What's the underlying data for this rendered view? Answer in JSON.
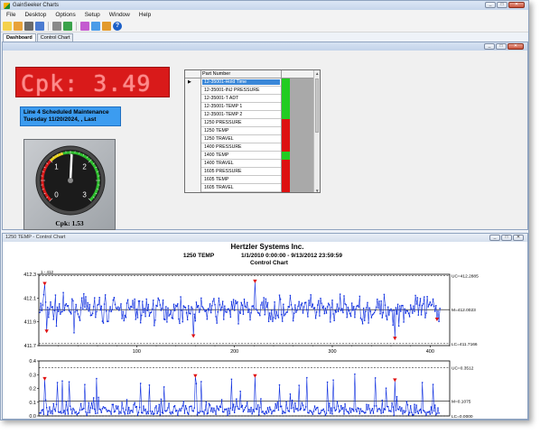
{
  "window": {
    "title": "GainSeeker Charts",
    "controls": [
      "_",
      "□",
      "✕"
    ]
  },
  "menu": [
    "File",
    "Desktop",
    "Options",
    "Setup",
    "Window",
    "Help"
  ],
  "toolbar": {
    "icons": [
      {
        "name": "new-chart-icon",
        "color": "#f4d14c"
      },
      {
        "name": "open-icon",
        "color": "#e8a23a"
      },
      {
        "name": "disk-icon",
        "color": "#6b6b6b"
      },
      {
        "name": "dashboard-icon",
        "color": "#4b7bd1"
      },
      {
        "name": "print-icon",
        "color": "#8a8a8a"
      },
      {
        "name": "export-icon",
        "color": "#3aa24a"
      },
      {
        "name": "palette-icon",
        "color": "#c45bd0"
      },
      {
        "name": "grid-icon",
        "color": "#4a9ce8"
      },
      {
        "name": "settings-icon",
        "color": "#e39a2b"
      }
    ],
    "help_label": "?"
  },
  "tabs": [
    "Dashboard",
    "Control Chart"
  ],
  "dashboard": {
    "cpk_banner": "Cpk: 3.49",
    "maintenance": {
      "line1": "Line 4 Scheduled Maintenance",
      "line2": "Tuesday 11/20/2024, , Last"
    },
    "gauge": {
      "value": 1.53,
      "label": "Cpk: 1.53",
      "ticks": [
        "0",
        "1",
        "2",
        "3"
      ],
      "max": 3
    },
    "grid": {
      "header": "Part Number",
      "rows": [
        {
          "part": "12-35001-Hold Time",
          "status": "green",
          "selected": true
        },
        {
          "part": "12-35001-INJ PRESSURE",
          "status": "green"
        },
        {
          "part": "12-35001-T ADT",
          "status": "green"
        },
        {
          "part": "12-35001-TEMP 1",
          "status": "green"
        },
        {
          "part": "12-35001-TEMP 2",
          "status": "green"
        },
        {
          "part": "1250 PRESSURE",
          "status": "red"
        },
        {
          "part": "1250 TEMP",
          "status": "red"
        },
        {
          "part": "1250 TRAVEL",
          "status": "red"
        },
        {
          "part": "1400 PRESSURE",
          "status": "red"
        },
        {
          "part": "1400 TEMP",
          "status": "green"
        },
        {
          "part": "1400 TRAVEL",
          "status": "red"
        },
        {
          "part": "1605 PRESSURE",
          "status": "red"
        },
        {
          "part": "1605 TEMP",
          "status": "red"
        },
        {
          "part": "1605 TRAVEL",
          "status": "red"
        }
      ]
    }
  },
  "control_chart": {
    "window_title": "1250 TEMP - Control Chart",
    "company": "Hertzler Systems Inc.",
    "part": "1250 TEMP",
    "date_range": "1/1/2010 0:00:00 - 9/13/2012 23:59:59",
    "chart_title": "Control Chart",
    "colors": {
      "line": "#1030e0",
      "point": "#1030e0",
      "alarm": "#e01010"
    }
  },
  "chart_data": [
    {
      "type": "line",
      "title": "",
      "top_left_label": "1 - 412",
      "ylim": [
        411.7,
        412.3
      ],
      "yticks": [
        "412.3",
        "412.1",
        "411.9",
        "411.7"
      ],
      "xlim": [
        0,
        420
      ],
      "xticks": [
        100,
        200,
        300,
        400
      ],
      "lines": [
        {
          "label": "UC=412.2885",
          "value": 412.2885
        },
        {
          "label": "M=412.0023",
          "value": 412.0023
        },
        {
          "label": "LC=411.7166",
          "value": 411.7166
        }
      ],
      "n_points": 410,
      "center": 412.0023,
      "spread": 0.085,
      "alarms": [
        {
          "x": 6,
          "y": 412.22
        },
        {
          "x": 8,
          "y": 411.82
        },
        {
          "x": 158,
          "y": 411.78
        },
        {
          "x": 221,
          "y": 412.24
        },
        {
          "x": 364,
          "y": 411.76
        },
        {
          "x": 407,
          "y": 411.92
        }
      ]
    },
    {
      "type": "line",
      "title": "",
      "ylim": [
        0.0,
        0.4
      ],
      "yticks": [
        "0.4",
        "0.3",
        "0.2",
        "0.1",
        "0.0"
      ],
      "xlim": [
        0,
        420
      ],
      "lines": [
        {
          "label": "UC=0.3512",
          "value": 0.3512
        },
        {
          "label": "M=0.1075",
          "value": 0.1075
        },
        {
          "label": "LC=0.0000",
          "value": 0.0
        }
      ],
      "n_points": 409,
      "center": 0.1075,
      "spread": 0.065,
      "alarms": [
        {
          "x": 6,
          "y": 0.27
        },
        {
          "x": 160,
          "y": 0.29
        },
        {
          "x": 221,
          "y": 0.29
        },
        {
          "x": 364,
          "y": 0.26
        }
      ]
    }
  ]
}
